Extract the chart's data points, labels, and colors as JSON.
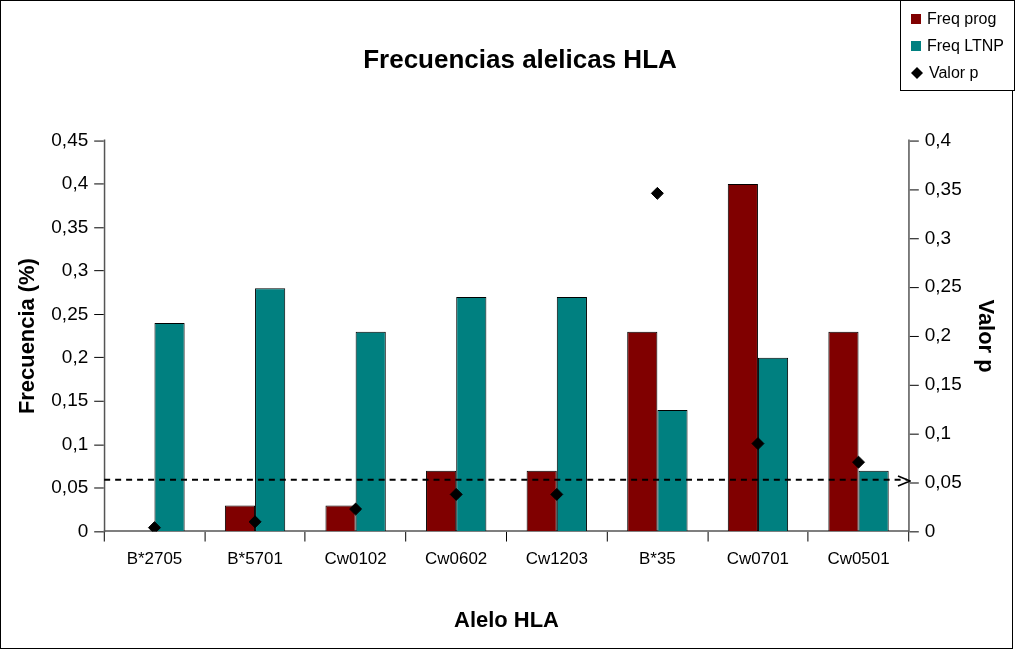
{
  "chart_data": {
    "type": "bar",
    "title": "Frecuencias alelicas HLA",
    "xlabel": "Alelo HLA",
    "ylabel": "Frecuencia (%)",
    "y2label": "Valor p",
    "categories": [
      "B*2705",
      "B*5701",
      "Cw0102",
      "Cw0602",
      "Cw1203",
      "B*35",
      "Cw0701",
      "Cw0501"
    ],
    "series": [
      {
        "name": "Freq prog",
        "color": "#800000",
        "values": [
          0,
          0.03,
          0.03,
          0.07,
          0.07,
          0.23,
          0.4,
          0.23
        ]
      },
      {
        "name": "Freq LTNP",
        "color": "#008080",
        "values": [
          0.24,
          0.28,
          0.23,
          0.27,
          0.27,
          0.14,
          0.2,
          0.07
        ]
      },
      {
        "name": "Valor p",
        "type": "scatter",
        "axis": "y2",
        "marker": "diamond",
        "color": "#000000",
        "values": [
          0.004,
          0.01,
          0.023,
          0.038,
          0.038,
          0.346,
          0.09,
          0.071
        ]
      }
    ],
    "ylim": [
      0,
      0.45
    ],
    "yticks": [
      0,
      {
        "value": 0.05,
        "label": "0,05"
      },
      {
        "value": 0.1,
        "label": "0,1"
      },
      {
        "value": 0.15,
        "label": "0,15"
      },
      {
        "value": 0.2,
        "label": "0,2"
      },
      {
        "value": 0.25,
        "label": "0,25"
      },
      {
        "value": 0.3,
        "label": "0,3"
      },
      {
        "value": 0.35,
        "label": "0,35"
      },
      {
        "value": 0.4,
        "label": "0,4"
      },
      {
        "value": 0.45,
        "label": "0,45"
      }
    ],
    "y2lim": [
      0,
      0.4
    ],
    "y2ticks": [
      0,
      {
        "value": 0.05,
        "label": "0,05"
      },
      {
        "value": 0.1,
        "label": "0,1"
      },
      {
        "value": 0.15,
        "label": "0,15"
      },
      {
        "value": 0.2,
        "label": "0,2"
      },
      {
        "value": 0.25,
        "label": "0,25"
      },
      {
        "value": 0.3,
        "label": "0,3"
      },
      {
        "value": 0.35,
        "label": "0,35"
      },
      {
        "value": 0.4,
        "label": "0,4"
      }
    ],
    "ref_lines": [
      {
        "axis": "y2",
        "value": 0.053,
        "color": "#000000",
        "line_style": "dashed"
      }
    ],
    "legend": "top right",
    "grid": false
  }
}
